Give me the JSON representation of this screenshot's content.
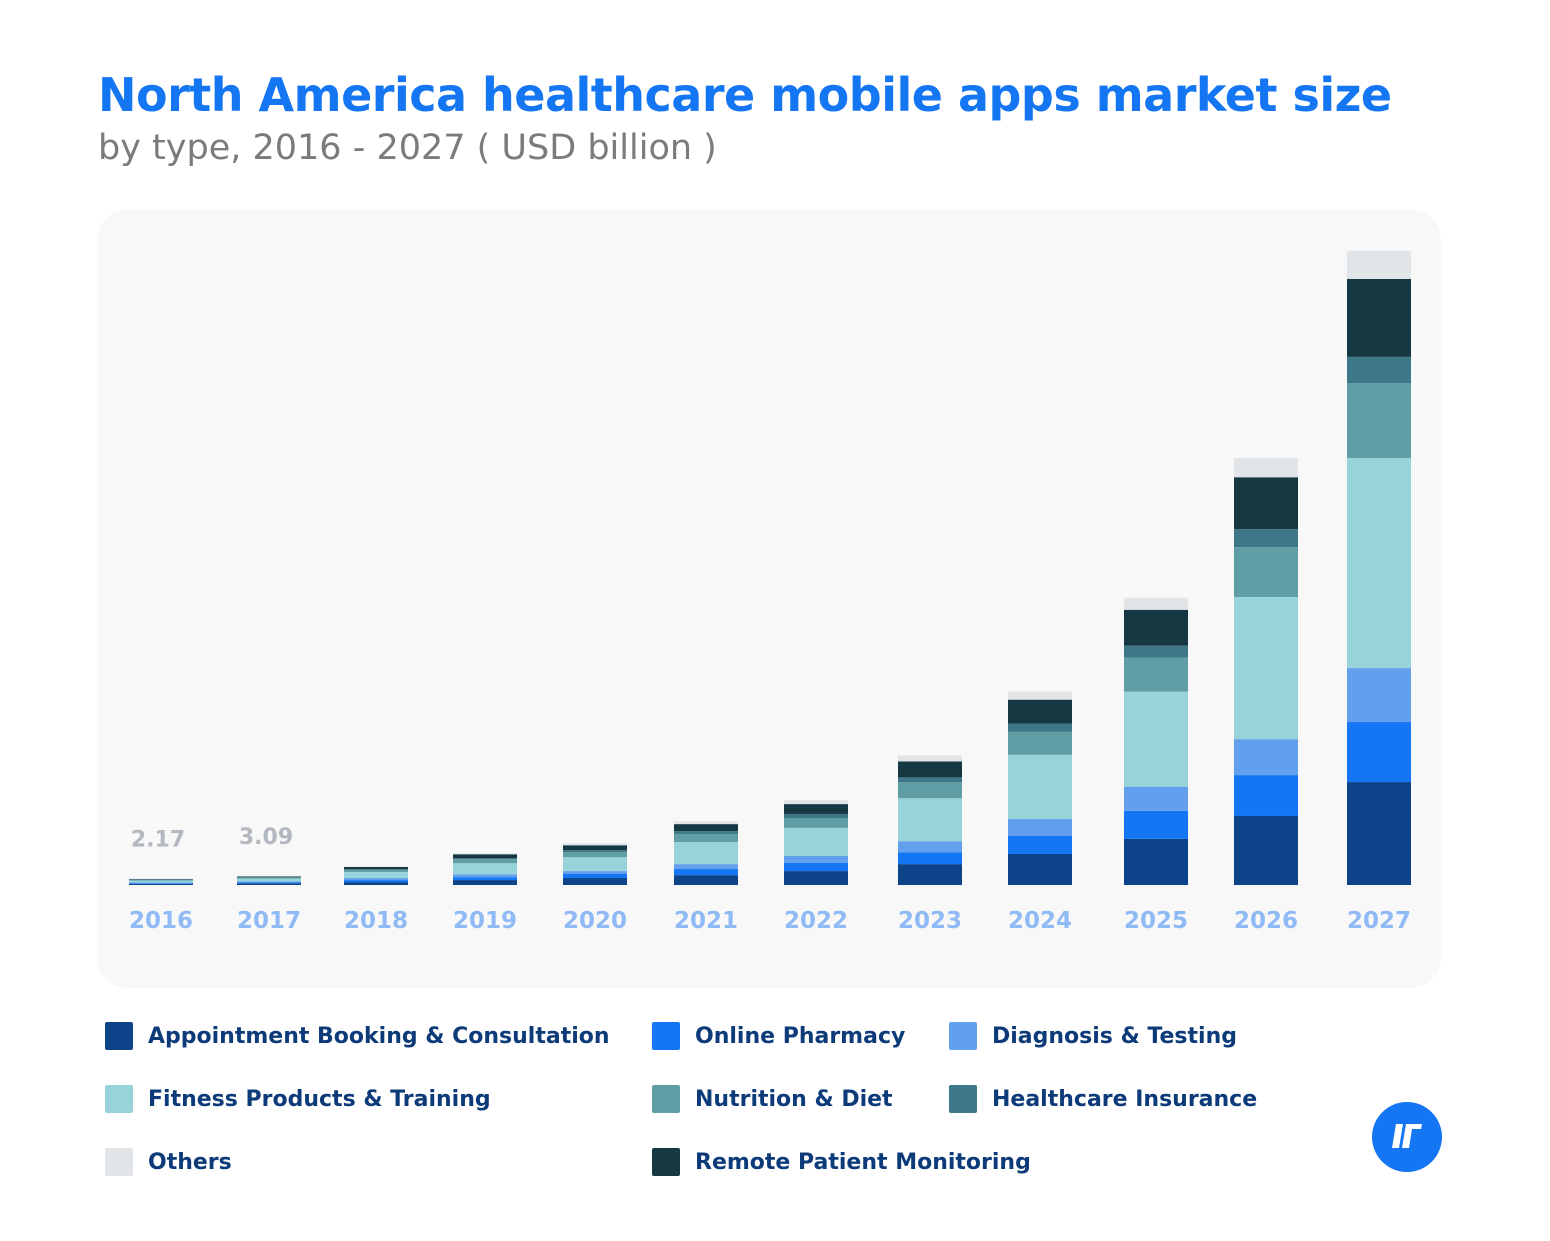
{
  "chart_data": {
    "type": "bar",
    "stacked": true,
    "title": "North America healthcare mobile apps market size",
    "subtitle": "by type, 2016 - 2027 ( USD billion )",
    "categories": [
      "2016",
      "2017",
      "2018",
      "2019",
      "2020",
      "2021",
      "2022",
      "2023",
      "2024",
      "2025",
      "2026",
      "2027"
    ],
    "series": [
      {
        "name": "Appointment Booking & Consultation",
        "color": "#0d4389",
        "values": [
          0.4,
          0.6,
          1.0,
          1.7,
          2.4,
          3.4,
          4.8,
          7.2,
          10.7,
          15.9,
          23.8,
          35.5
        ]
      },
      {
        "name": "Online Pharmacy",
        "color": "#1476f2",
        "values": [
          0.25,
          0.35,
          0.7,
          1.0,
          1.4,
          2.1,
          2.8,
          4.1,
          6.2,
          9.7,
          14.1,
          20.7
        ]
      },
      {
        "name": "Diagnosis & Testing",
        "color": "#62a0ee",
        "values": [
          0.2,
          0.3,
          0.7,
          1.0,
          1.0,
          1.7,
          2.4,
          3.8,
          5.9,
          8.3,
          12.4,
          18.6
        ]
      },
      {
        "name": "Fitness Products & Training",
        "color": "#98d3da",
        "values": [
          0.7,
          1.0,
          2.1,
          3.8,
          4.8,
          7.6,
          9.7,
          14.8,
          22.1,
          32.8,
          49.0,
          72.4
        ]
      },
      {
        "name": "Nutrition & Diet",
        "color": "#5f9ea4",
        "values": [
          0.25,
          0.35,
          0.7,
          1.4,
          1.7,
          2.8,
          3.4,
          5.5,
          7.9,
          11.7,
          17.2,
          25.9
        ]
      },
      {
        "name": "Healthcare Insurance",
        "color": "#3e7888",
        "values": [
          0.08,
          0.12,
          0.3,
          0.3,
          0.7,
          1.0,
          1.4,
          1.7,
          2.8,
          4.1,
          6.2,
          9.0
        ]
      },
      {
        "name": "Remote Patient Monitoring",
        "color": "#163843",
        "values": [
          0.2,
          0.27,
          0.7,
          1.4,
          1.7,
          2.4,
          3.4,
          5.5,
          8.3,
          12.4,
          17.9,
          26.9
        ]
      },
      {
        "name": "Others",
        "color": "#e1e5e8",
        "values": [
          0.09,
          0.1,
          0.3,
          0.3,
          0.7,
          1.0,
          1.4,
          2.1,
          2.8,
          4.1,
          6.6,
          9.7
        ]
      }
    ],
    "data_labels": [
      {
        "category": "2016",
        "text": "2.17"
      },
      {
        "category": "2017",
        "text": "3.09"
      }
    ],
    "legend_order": [
      0,
      1,
      2,
      3,
      4,
      5,
      7,
      6
    ],
    "legend_placement": "bottom",
    "grid": false,
    "axis_label_color": "#8fbaf5",
    "data_label_color": "#b3b8c0"
  }
}
